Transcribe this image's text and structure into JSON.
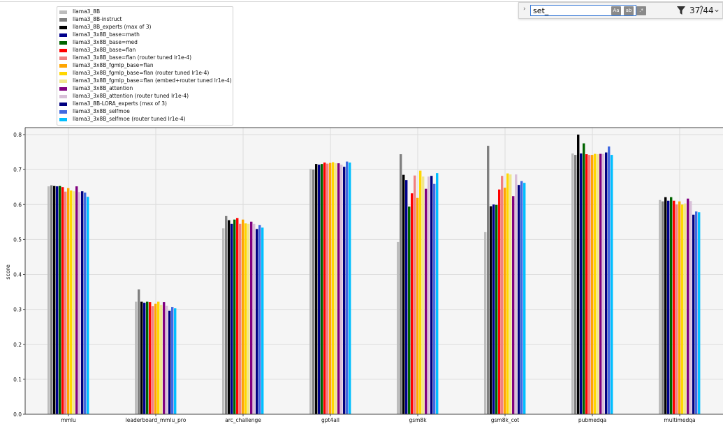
{
  "find": {
    "query": "set_",
    "count": "37/44",
    "toggle_icon": "chevron-right-icon",
    "options": [
      "Aa",
      "ab",
      ".*"
    ]
  },
  "chart_data": {
    "type": "bar",
    "ylabel": "score",
    "ylim": [
      0,
      0.82
    ],
    "yticks": [
      "0.0",
      "0.1",
      "0.2",
      "0.3",
      "0.4",
      "0.5",
      "0.6",
      "0.7",
      "0.8"
    ],
    "grid": true,
    "legend_position": "top-left",
    "categories": [
      "mmlu",
      "leaderboard_mmlu_pro",
      "arc_challenge",
      "gpt4all",
      "gsm8k",
      "gsm8k_cot",
      "pubmedqa",
      "multimedqa"
    ],
    "series": [
      {
        "name": "llama3_8B",
        "color": "#bdbdbd",
        "values": [
          0.652,
          0.322,
          0.532,
          0.702,
          0.493,
          0.521,
          0.746,
          0.613
        ]
      },
      {
        "name": "llama3_8B-instruct",
        "color": "#808080",
        "values": [
          0.655,
          0.357,
          0.567,
          0.7,
          0.744,
          0.768,
          0.742,
          0.609
        ]
      },
      {
        "name": "llama3_8B_experts (max of 3)",
        "color": "#000000",
        "values": [
          0.653,
          0.322,
          0.555,
          0.716,
          0.685,
          0.595,
          0.8,
          0.621
        ]
      },
      {
        "name": "llama3_3x8B_base=math",
        "color": "#00008b",
        "values": [
          0.652,
          0.319,
          0.545,
          0.714,
          0.67,
          0.6,
          0.746,
          0.611
        ]
      },
      {
        "name": "llama3_3x8B_base=med",
        "color": "#006400",
        "values": [
          0.653,
          0.322,
          0.557,
          0.716,
          0.594,
          0.599,
          0.775,
          0.621
        ]
      },
      {
        "name": "llama3_3x8B_base=flan",
        "color": "#ff0000",
        "values": [
          0.65,
          0.321,
          0.561,
          0.72,
          0.632,
          0.643,
          0.744,
          0.611
        ]
      },
      {
        "name": "llama3_3x8B_base=flan (router tuned lr1e-4)",
        "color": "#f08080",
        "values": [
          0.637,
          0.309,
          0.545,
          0.717,
          0.683,
          0.682,
          0.742,
          0.6
        ]
      },
      {
        "name": "llama3_3x8B_fgmlp_base=flan",
        "color": "#ffa500",
        "values": [
          0.647,
          0.316,
          0.557,
          0.719,
          0.619,
          0.648,
          0.742,
          0.609
        ]
      },
      {
        "name": "llama3_3x8B_fgmlp_base=flan (router tuned lr1e-4)",
        "color": "#ffd700",
        "values": [
          0.64,
          0.322,
          0.546,
          0.721,
          0.697,
          0.689,
          0.745,
          0.6
        ]
      },
      {
        "name": "llama3_3x8B_fgmlp_base=flan (embed+router tuned lr1e-4)",
        "color": "#f0e68c",
        "values": [
          0.638,
          0.313,
          0.545,
          0.718,
          0.68,
          0.686,
          0.744,
          0.603
        ]
      },
      {
        "name": "llama3_3x8B_attention",
        "color": "#800080",
        "values": [
          0.652,
          0.321,
          0.551,
          0.718,
          0.645,
          0.624,
          0.745,
          0.617
        ]
      },
      {
        "name": "llama3_3x8B_attention  (router tuned lr1e-4)",
        "color": "#d8bfd8",
        "values": [
          0.636,
          0.31,
          0.545,
          0.714,
          0.68,
          0.686,
          0.745,
          0.61
        ]
      },
      {
        "name": "llama3_8B-LORA_experts (max of 3)",
        "color": "#000080",
        "values": [
          0.638,
          0.296,
          0.53,
          0.708,
          0.682,
          0.656,
          0.749,
          0.571
        ]
      },
      {
        "name": "llama3_3x8B_selfmoe",
        "color": "#4169e1",
        "values": [
          0.634,
          0.307,
          0.541,
          0.723,
          0.659,
          0.667,
          0.766,
          0.58
        ]
      },
      {
        "name": "llama3_3x8B_selfmoe (router tuned lr1e-4)",
        "color": "#00bfff",
        "values": [
          0.622,
          0.303,
          0.534,
          0.72,
          0.69,
          0.662,
          0.742,
          0.578
        ]
      }
    ]
  }
}
